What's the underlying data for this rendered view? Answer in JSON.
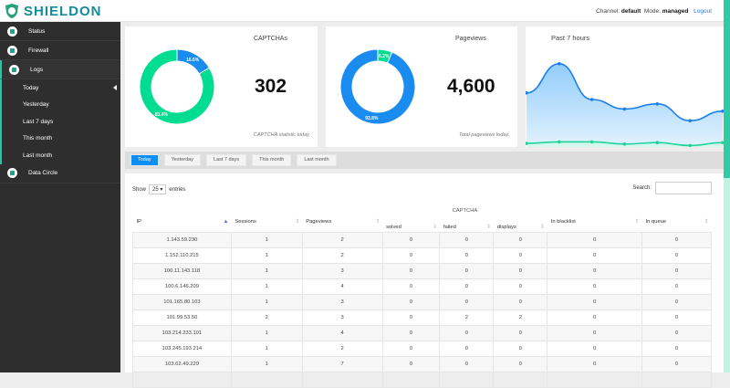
{
  "header": {
    "brand": "SHIELDON",
    "channel_label": "Channel:",
    "channel": "default",
    "mode_label": "Mode:",
    "mode": "managed",
    "logout": "Logout"
  },
  "sidebar": {
    "items": [
      {
        "label": "Status",
        "icon": "gear-icon"
      },
      {
        "label": "Firewall",
        "icon": "fire-icon"
      },
      {
        "label": "Logs",
        "icon": "chart-icon"
      },
      {
        "label": "Data Circle",
        "icon": "table-icon"
      }
    ],
    "logs_sub": [
      "Today",
      "Yesterday",
      "Last 7 days",
      "This month",
      "Last month"
    ]
  },
  "cards": {
    "captcha": {
      "title": "CAPTCHAs",
      "value": "302",
      "note": "CAPTCHA statistic today.",
      "slices": [
        {
          "label": "16.6%",
          "value": 16.6,
          "color": "#1a8cf0"
        },
        {
          "label": "83.4%",
          "value": 83.4,
          "color": "#00dd91"
        }
      ]
    },
    "pageviews": {
      "title": "Pageviews",
      "value": "4,600",
      "note": "Total pageviews today.",
      "slices": [
        {
          "label": "6.2%",
          "value": 6.2,
          "color": "#00dd91"
        },
        {
          "label": "93.8%",
          "value": 93.8,
          "color": "#1a8cf0"
        }
      ]
    },
    "chart": {
      "title": "Past 7 hours"
    }
  },
  "chart_data": {
    "type": "area",
    "title": "Past 7 hours",
    "series": [
      {
        "values": [
          74,
          114,
          65,
          52,
          59,
          36,
          49
        ],
        "color": "#1a7ff0"
      },
      {
        "values": [
          5,
          7,
          7,
          4,
          6,
          2,
          6
        ],
        "color": "#1fd39a"
      }
    ],
    "grid": false
  },
  "tabs": [
    "Today",
    "Yesterday",
    "Last 7 days",
    "This month",
    "Last month"
  ],
  "table": {
    "show": "Show",
    "entries_value": "25",
    "entries": "entries",
    "search": "Search:",
    "group": "CAPTCHA",
    "headers": [
      "IP",
      "Sessions",
      "Pageviews",
      "solved",
      "failed",
      "displays",
      "In blacklist",
      "In queue"
    ],
    "rows": [
      [
        "1.143.59.230",
        "1",
        "2",
        "0",
        "0",
        "0",
        "0",
        "0"
      ],
      [
        "1.152.110.215",
        "1",
        "2",
        "0",
        "0",
        "0",
        "0",
        "0"
      ],
      [
        "100.11.143.118",
        "1",
        "3",
        "0",
        "0",
        "0",
        "0",
        "0"
      ],
      [
        "100.6.146.209",
        "1",
        "4",
        "0",
        "0",
        "0",
        "0",
        "0"
      ],
      [
        "101.165.80.103",
        "1",
        "3",
        "0",
        "0",
        "0",
        "0",
        "0"
      ],
      [
        "101.99.53.50",
        "2",
        "3",
        "0",
        "2",
        "2",
        "0",
        "0"
      ],
      [
        "103.214.233.101",
        "1",
        "4",
        "0",
        "0",
        "0",
        "0",
        "0"
      ],
      [
        "103.245.193.214",
        "1",
        "2",
        "0",
        "0",
        "0",
        "0",
        "0"
      ],
      [
        "103.62.49.229",
        "1",
        "7",
        "0",
        "0",
        "0",
        "0",
        "0"
      ],
      [
        "",
        "",
        "",
        "",
        "",
        "",
        "",
        ""
      ]
    ]
  }
}
